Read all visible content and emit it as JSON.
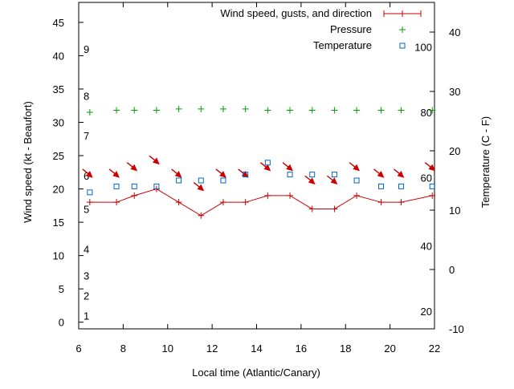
{
  "chart_data": {
    "type": "line",
    "xlabel": "Local time (Atlantic/Canary)",
    "ylabel_left": "Wind speed (kt - Beaufort)",
    "ylabel_right": "Temperature (C - F)",
    "x_range": [
      6,
      22
    ],
    "x_ticks": [
      "6",
      "8",
      "10",
      "12",
      "14",
      "16",
      "18",
      "20",
      "22"
    ],
    "y_left_range": [
      -1,
      48
    ],
    "y_left_ticks": [
      "0",
      "5",
      "10",
      "15",
      "20",
      "25",
      "30",
      "35",
      "40",
      "45"
    ],
    "y_right_range": [
      -10,
      45
    ],
    "y_right_ticks": [
      "-10",
      "0",
      "10",
      "20",
      "30",
      "40"
    ],
    "beaufort_labels": [
      {
        "label": "1",
        "value": 1
      },
      {
        "label": "2",
        "value": 4
      },
      {
        "label": "3",
        "value": 7
      },
      {
        "label": "4",
        "value": 11
      },
      {
        "label": "5",
        "value": 17
      },
      {
        "label": "6",
        "value": 22
      },
      {
        "label": "7",
        "value": 28
      },
      {
        "label": "8",
        "value": 34
      },
      {
        "label": "9",
        "value": 41
      }
    ],
    "fahrenheit_labels": [
      {
        "label": "20",
        "value": -7
      },
      {
        "label": "40",
        "value": 4
      },
      {
        "label": "60",
        "value": 15.5
      },
      {
        "label": "80",
        "value": 26.5
      },
      {
        "label": "100",
        "value": 37.5
      }
    ],
    "grid": false,
    "legend_position": "top-right",
    "series": [
      {
        "name": "Wind speed, gusts, and direction",
        "axis": "left",
        "color": "#cc0000",
        "style": "line-with-plus-markers",
        "x": [
          6.5,
          7.7,
          8.5,
          9.5,
          10.5,
          11.5,
          12.5,
          13.5,
          14.5,
          15.5,
          16.5,
          17.5,
          18.5,
          19.6,
          20.5,
          21.9
        ],
        "y": [
          18,
          18,
          19,
          20,
          18,
          16,
          18,
          18,
          19,
          19,
          17,
          17,
          19,
          18,
          18,
          19
        ],
        "gust_arrow_y": [
          22,
          22,
          23,
          24,
          22,
          20,
          22,
          22,
          23,
          23,
          21,
          21,
          23,
          22,
          22,
          23
        ]
      },
      {
        "name": "Pressure",
        "axis": "left",
        "color": "#00a000",
        "style": "plus-markers",
        "x": [
          6.5,
          7.7,
          8.5,
          9.5,
          10.5,
          11.5,
          12.5,
          13.5,
          14.5,
          15.5,
          16.5,
          17.5,
          18.5,
          19.6,
          20.5,
          21.9
        ],
        "y": [
          31.5,
          31.8,
          31.8,
          31.8,
          32,
          32,
          32,
          32,
          31.8,
          31.8,
          31.8,
          31.8,
          31.8,
          31.8,
          31.8,
          31.8
        ]
      },
      {
        "name": "Temperature",
        "axis": "right",
        "color": "#0066cc",
        "style": "square-markers",
        "x": [
          6.5,
          7.7,
          8.5,
          9.5,
          10.5,
          11.5,
          12.5,
          13.5,
          14.5,
          15.5,
          16.5,
          17.5,
          18.5,
          19.6,
          20.5,
          21.9
        ],
        "y": [
          13,
          14,
          14,
          14,
          15,
          15,
          15,
          16,
          18,
          16,
          16,
          16,
          15,
          14,
          14,
          14
        ]
      }
    ]
  }
}
